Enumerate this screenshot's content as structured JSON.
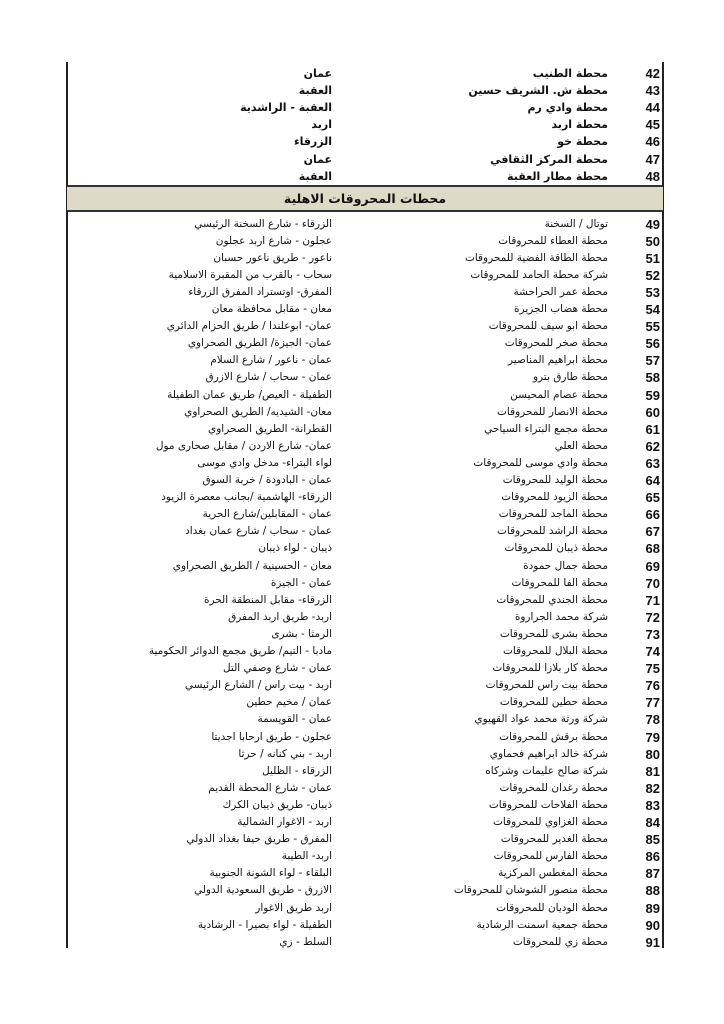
{
  "section_title": "محطات المحروقات الاهلية",
  "top_rows": [
    {
      "num": "42",
      "name": "محطة الطنيب",
      "location": "عمان"
    },
    {
      "num": "43",
      "name": "محطة ش. الشريف حسين",
      "location": "العقبة"
    },
    {
      "num": "44",
      "name": "محطة وادي رم",
      "location": "العقبة - الراشدية"
    },
    {
      "num": "45",
      "name": "محطة اربد",
      "location": "اربد"
    },
    {
      "num": "46",
      "name": "محطة خو",
      "location": "الزرقاء"
    },
    {
      "num": "47",
      "name": "محطة المركز الثقافي",
      "location": "عمان"
    },
    {
      "num": "48",
      "name": "محطة مطار العقبة",
      "location": "العقبة"
    }
  ],
  "rows": [
    {
      "num": "49",
      "name": "توتال / السخنة",
      "location": "الزرقاء - شارع السخنة الرئيسي"
    },
    {
      "num": "50",
      "name": "محطة العطاء للمحروقات",
      "location": "عجلون - شارع اربد عجلون"
    },
    {
      "num": "51",
      "name": "محطة الطاقة الفضية للمحروقات",
      "location": "ناعور - طريق ناعور حسبان"
    },
    {
      "num": "52",
      "name": "شركة محطة الحامد للمحروقات",
      "location": "سحاب - بالقرب من المقبرة الاسلامية"
    },
    {
      "num": "53",
      "name": "محطة عمر الحراحشة",
      "location": "المفرق- اوتستراد المفرق الزرقاء"
    },
    {
      "num": "54",
      "name": "محطة هضاب الجزيرة",
      "location": "معان - مقابل محافظة معان"
    },
    {
      "num": "55",
      "name": "محطة ابو سيف للمحروقات",
      "location": "عمان- ابوعلندا / طريق الحزام الدائري"
    },
    {
      "num": "56",
      "name": "محطة صخر للمحروقات",
      "location": "عمان- الجيزة/ الطريق الصحراوي"
    },
    {
      "num": "57",
      "name": "محطة ابراهيم المناصير",
      "location": "عمان - ناعور / شارع السلام"
    },
    {
      "num": "58",
      "name": "محطة طارق بترو",
      "location": "عمان - سحاب / شارع الازرق"
    },
    {
      "num": "59",
      "name": "محطة عصام المحيسن",
      "location": "الطفيلة - العيص/ طريق عمان الطفيلة"
    },
    {
      "num": "60",
      "name": "محطة الانصار للمحروقات",
      "location": "معان- الشيديه/ الطريق الصحراوي"
    },
    {
      "num": "61",
      "name": "محطة مجمع البتراء السياحي",
      "location": "القطرانة- الطريق الصحراوي"
    },
    {
      "num": "62",
      "name": "محطة العلي",
      "location": "عمان- شارع الاردن / مقابل صحارى مول"
    },
    {
      "num": "63",
      "name": "محطة وادي موسى للمحروقات",
      "location": "لواء البتراء- مدخل وادي موسى"
    },
    {
      "num": "64",
      "name": "محطة الوليد للمحروقات",
      "location": "عمان - البادودة / خربة السوق"
    },
    {
      "num": "65",
      "name": "محطة الزيود للمحروقات",
      "location": "الزرقاء- الهاشمية /بجانب معصرة الزيود"
    },
    {
      "num": "66",
      "name": "محطة الماجد للمحروقات",
      "location": "عمان - المقابلين/شارع الحرية"
    },
    {
      "num": "67",
      "name": "محطة الراشد للمحروقات",
      "location": "عمان - سحاب / شارع عمان بغداد"
    },
    {
      "num": "68",
      "name": "محطة ذيبان للمحروقات",
      "location": "ذيبان - لواء ذيبان"
    },
    {
      "num": "69",
      "name": "محطة جمال حمودة",
      "location": "معان - الحسينية / الطريق الصحراوي"
    },
    {
      "num": "70",
      "name": "محطة الفا للمحروقات",
      "location": "عمان - الجيزة"
    },
    {
      "num": "71",
      "name": "محطة الجندي للمحروقات",
      "location": "الزرقاء- مقابل المنطقة الحرة"
    },
    {
      "num": "72",
      "name": "شركة محمد الجراروة",
      "location": "اربد- طريق اربد المفرق"
    },
    {
      "num": "73",
      "name": "محطة بشرى للمحروقات",
      "location": "الرمثا - بشرى"
    },
    {
      "num": "74",
      "name": "محطة البلال للمحروقات",
      "location": "مادبا - التيم/ طريق مجمع الدوائر الحكومية"
    },
    {
      "num": "75",
      "name": "محطة كار بلازا للمحروقات",
      "location": "عمان - شارع وصفي التل"
    },
    {
      "num": "76",
      "name": "محطة بيت راس للمحروقات",
      "location": "اربد - بيت راس / الشارع الرئيسي"
    },
    {
      "num": "77",
      "name": "محطة حطين للمحروقات",
      "location": "عمان / مخيم حطين"
    },
    {
      "num": "78",
      "name": "شركة ورثة محمد عواد القهيوي",
      "location": "عمان - القويسمة"
    },
    {
      "num": "79",
      "name": "محطة برقش للمحروقات",
      "location": "عجلون - طريق ارحابا اجديتا"
    },
    {
      "num": "80",
      "name": "شركة خالد ابراهيم فحماوي",
      "location": "اربد - بني كنانه / حرثا"
    },
    {
      "num": "81",
      "name": "شركة صالح عليمات وشركاه",
      "location": "الزرقاء - الظليل"
    },
    {
      "num": "82",
      "name": "محطة رغدان للمحروقات",
      "location": "عمان - شارع المحطة القديم"
    },
    {
      "num": "83",
      "name": "محطة الفلاحات للمحروقات",
      "location": "ذيبان- طريق ذيبان الكرك"
    },
    {
      "num": "84",
      "name": "محطة الغزاوي للمحروقات",
      "location": "اربد - الاغوار الشمالية"
    },
    {
      "num": "85",
      "name": "محطة الغدير للمحروقات",
      "location": "المفرق - طريق حيفا بغداد الدولي"
    },
    {
      "num": "86",
      "name": "محطة الفارس للمحروقات",
      "location": "اربد- الطيبة"
    },
    {
      "num": "87",
      "name": "محطة المغطس المركزية",
      "location": "البلقاء - لواء الشونة الجنوبية"
    },
    {
      "num": "88",
      "name": "محطة منصور الشوشان للمحروقات",
      "location": "الازرق - طريق السعودية الدولي"
    },
    {
      "num": "89",
      "name": "محطة الوديان للمحروقات",
      "location": "اربد طريق الاغوار"
    },
    {
      "num": "90",
      "name": "محطة جمعية اسمنت الرشادية",
      "location": "الطفيلة - لواء بصيرا - الرشادية"
    },
    {
      "num": "91",
      "name": "محطة زي للمحروقات",
      "location": "السلط - زي"
    }
  ]
}
